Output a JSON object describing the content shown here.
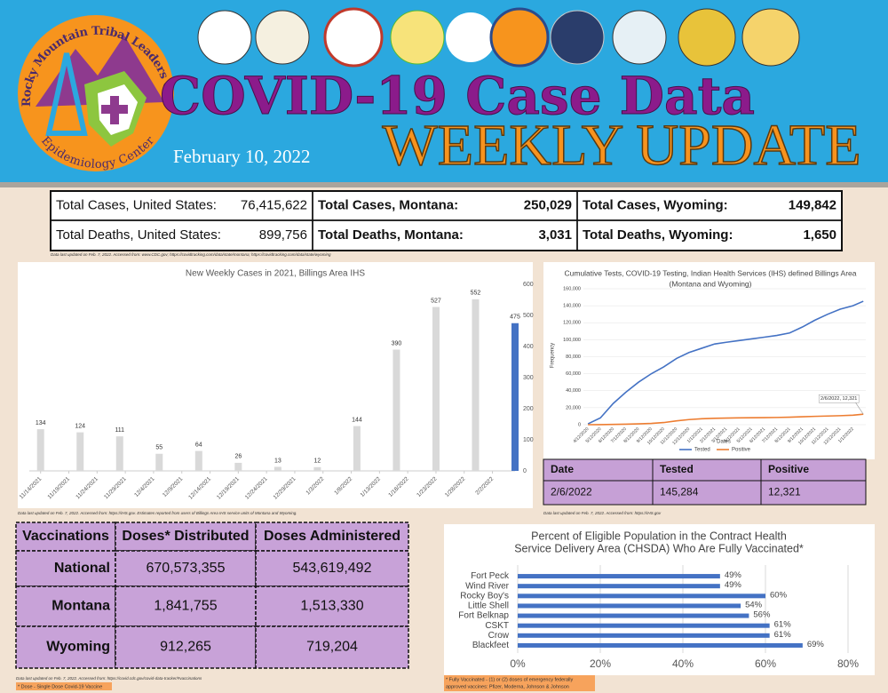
{
  "header": {
    "org": "Rocky Mountain Tribal Leaders Council",
    "center": "Epidemiology Center",
    "title": "COVID-19 Case Data",
    "subtitle": "WEEKLY UPDATE",
    "date": "February 10, 2022"
  },
  "totals": {
    "rows": [
      [
        {
          "label": "Total Cases, United States:",
          "value": "76,415,622"
        },
        {
          "label": "Total Cases, Montana:",
          "value": "250,029"
        },
        {
          "label": "Total Cases, Wyoming:",
          "value": "149,842"
        }
      ],
      [
        {
          "label": "Total Deaths, United States:",
          "value": "899,756"
        },
        {
          "label": "Total Deaths, Montana:",
          "value": "3,031"
        },
        {
          "label": "Total Deaths, Wyoming:",
          "value": "1,650"
        }
      ]
    ],
    "note": "Data last updated on Feb. 7, 2022. Accessed from: www.CDC.gov; https://covidtracking.com/data/state/montana; https://covidtracking.com/data/state/wyoming"
  },
  "chart_data": [
    {
      "type": "bar",
      "title": "New Weekly Cases in 2021, Billings Area IHS",
      "x": [
        "11/14/2021",
        "11/21/2021",
        "11/28/2021",
        "12/5/2021",
        "12/12/2021",
        "12/19/2021",
        "12/26/2021",
        "1/2/2022",
        "1/9/2022",
        "1/16/2022",
        "1/23/2022",
        "1/30/2022",
        "2/6/2022"
      ],
      "values": [
        134,
        124,
        111,
        55,
        64,
        26,
        13,
        12,
        144,
        390,
        527,
        552,
        475
      ],
      "colors": [
        "#d9d9d9",
        "#d9d9d9",
        "#d9d9d9",
        "#d9d9d9",
        "#d9d9d9",
        "#d9d9d9",
        "#d9d9d9",
        "#d9d9d9",
        "#d9d9d9",
        "#d9d9d9",
        "#d9d9d9",
        "#d9d9d9",
        "#4472c4"
      ],
      "xlim": [
        "11/12/2021",
        "2/6/2022"
      ],
      "xticks": [
        "11/14/2021",
        "11/19/2021",
        "11/24/2021",
        "11/29/2021",
        "12/4/2021",
        "12/9/2021",
        "12/14/2021",
        "12/19/2021",
        "12/24/2021",
        "12/29/2021",
        "1/3/2022",
        "1/8/2022",
        "1/13/2022",
        "1/18/2022",
        "1/23/2022",
        "1/28/2022",
        "2/2/2022"
      ],
      "ylim": [
        0,
        600
      ],
      "yticks": [
        0,
        100,
        200,
        300,
        400,
        500,
        600
      ],
      "grid": false,
      "note": "Data last updated on Feb. 7, 2022. Accessed from: https://IHS.gov. Estimates reported from users of Billings Area IHS service units of Montana and Wyoming."
    },
    {
      "type": "line",
      "title": [
        "Cumulative Tests, COVID-19 Testing, Indian Health Services (IHS) defined Billings Area",
        "(Montana and Wyoming)"
      ],
      "xlabel": "Dates",
      "ylabel": "Frequency",
      "x": [
        "4/12/2020",
        "5/12/2020",
        "6/12/2020",
        "7/12/2020",
        "8/12/2020",
        "9/12/2020",
        "10/12/2020",
        "11/12/2020",
        "12/12/2020",
        "1/12/2021",
        "2/12/2021",
        "3/12/2021",
        "4/12/2021",
        "5/12/2021",
        "6/12/2021",
        "7/12/2021",
        "8/12/2021",
        "9/12/2021",
        "10/12/2021",
        "11/12/2021",
        "12/12/2021",
        "1/12/2022",
        "2/6/2022"
      ],
      "series": [
        {
          "name": "Tested",
          "color": "#4472c4",
          "values": [
            1000,
            8000,
            25000,
            38000,
            50000,
            60000,
            68000,
            78000,
            85000,
            90000,
            95000,
            97000,
            99000,
            101000,
            103000,
            105000,
            108000,
            115000,
            123000,
            130000,
            136000,
            140000,
            145284
          ]
        },
        {
          "name": "Positive",
          "color": "#ed7d31",
          "values": [
            0,
            100,
            300,
            600,
            1000,
            1500,
            2500,
            4500,
            6000,
            7000,
            7500,
            7800,
            8000,
            8200,
            8300,
            8500,
            8800,
            9300,
            9800,
            10200,
            10600,
            11200,
            12321
          ]
        }
      ],
      "annotation": "2/6/2022, 12,321",
      "xlim": [
        "4/1/2020",
        "2/12/2022"
      ],
      "xticks": [
        "4/12/2020",
        "5/12/2020",
        "6/12/2020",
        "7/12/2020",
        "8/12/2020",
        "9/12/2020",
        "10/12/2020",
        "11/12/2020",
        "12/12/2020",
        "1/12/2021",
        "2/12/2021",
        "3/12/2021",
        "4/12/2021",
        "5/12/2021",
        "6/12/2021",
        "7/12/2021",
        "8/12/2021",
        "9/12/2021",
        "10/12/2021",
        "11/12/2021",
        "12/12/2021",
        "1/12/2022"
      ],
      "ylim": [
        0,
        160000
      ],
      "yticks": [
        0,
        {
          "value": 20000,
          "label": "20,000"
        },
        {
          "value": 40000,
          "label": "40,000"
        },
        {
          "value": 60000,
          "label": "60,000"
        },
        {
          "value": 80000,
          "label": "80,000"
        },
        {
          "value": 100000,
          "label": "100,000"
        },
        {
          "value": 120000,
          "label": "120,000"
        },
        {
          "value": 140000,
          "label": "140,000"
        },
        {
          "value": 160000,
          "label": "160,000"
        }
      ],
      "grid": true,
      "legend": "bottom",
      "note": "Data last updated on Feb. 7, 2022. Accessed from: https://IHS.gov"
    },
    {
      "type": "hbar",
      "title": [
        "Percent of Eligible Population in the Contract Health",
        "Service Delivery Area (CHSDA) Who Are Fully Vaccinated*"
      ],
      "categories": [
        "Fort Peck",
        "Wind River",
        "Rocky Boy's",
        "Little Shell",
        "Fort Belknap",
        "CSKT",
        "Crow",
        "Blackfeet"
      ],
      "values": [
        49,
        49,
        60,
        54,
        56,
        61,
        61,
        69
      ],
      "value_labels": [
        "49%",
        "49%",
        "60%",
        "54%",
        "56%",
        "61%",
        "61%",
        "69%"
      ],
      "color": "#4472c4",
      "xlim": [
        0,
        80
      ],
      "xticks": [
        {
          "value": 0,
          "label": "0%"
        },
        {
          "value": 20,
          "label": "20%"
        },
        {
          "value": 40,
          "label": "40%"
        },
        {
          "value": 60,
          "label": "60%"
        },
        {
          "value": 80,
          "label": "80%"
        }
      ],
      "grid": true,
      "note": [
        "* Fully Vaccinated - (1) or (2) doses of emergency federally",
        "approved vaccines: Pfizer, Moderna, Johnson & Johnson"
      ]
    }
  ],
  "tests_table": {
    "header": [
      "Date",
      "Tested",
      "Positive"
    ],
    "rows": [
      [
        "2/6/2022",
        "145,284",
        "12,321"
      ]
    ]
  },
  "vaccination_table": {
    "header": [
      "Vaccinations",
      "Doses* Distributed",
      "Doses Administered"
    ],
    "rows": [
      [
        "National",
        "670,573,355",
        "543,619,492"
      ],
      [
        "Montana",
        "1,841,755",
        "1,513,330"
      ],
      [
        "Wyoming",
        "912,265",
        "719,204"
      ]
    ],
    "note": "Data last updated on Feb. 7, 2022. Accessed from: https://covid.cdc.gov/covid-data-tracker/#vaccinations",
    "footnote": "* Dose - Single Dose Covid-19 Vaccine"
  }
}
